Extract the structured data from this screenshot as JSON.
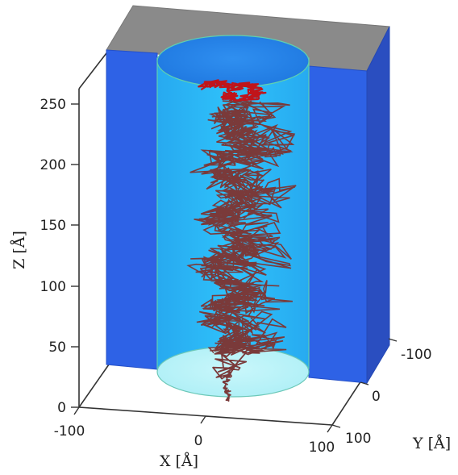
{
  "chart_data": {
    "type": "3d-line",
    "title": "",
    "xlabel": "X [Å]",
    "ylabel": "Y [Å]",
    "zlabel": "Z [Å]",
    "x_ticks": [
      -100,
      0,
      100
    ],
    "y_ticks": [
      -100,
      0,
      100
    ],
    "z_ticks": [
      0,
      50,
      100,
      150,
      200,
      250
    ],
    "xlim": [
      -100,
      100
    ],
    "ylim": [
      -100,
      100
    ],
    "zlim": [
      0,
      270
    ],
    "grid": false,
    "legend": "none",
    "structures": [
      {
        "name": "membrane-slab",
        "color": "#2e62e6",
        "top_color": "#8a8a8a",
        "z_range": [
          25,
          270
        ]
      },
      {
        "name": "pore-cylinder",
        "color": "#29b6f6",
        "z_range": [
          25,
          270
        ]
      }
    ],
    "series": [
      {
        "color": "#7a3a3a",
        "points": [
          [
            -5,
            0,
            5
          ],
          [
            -12,
            10,
            20
          ],
          [
            -2,
            5,
            35
          ],
          [
            10,
            -10,
            55
          ],
          [
            -20,
            20,
            75
          ],
          [
            15,
            -25,
            95
          ],
          [
            -30,
            10,
            115
          ],
          [
            25,
            30,
            135
          ],
          [
            -15,
            -20,
            155
          ],
          [
            20,
            15,
            175
          ],
          [
            -25,
            5,
            195
          ],
          [
            30,
            -20,
            215
          ],
          [
            -10,
            25,
            235
          ],
          [
            15,
            -5,
            252
          ]
        ]
      },
      {
        "color": "#c0141a",
        "points": [
          [
            -30,
            -40,
            262
          ],
          [
            -15,
            -35,
            266
          ],
          [
            5,
            -30,
            262
          ],
          [
            20,
            -25,
            266
          ],
          [
            35,
            -10,
            262
          ],
          [
            25,
            5,
            258
          ],
          [
            5,
            -5,
            256
          ],
          [
            -10,
            0,
            258
          ]
        ]
      }
    ]
  }
}
